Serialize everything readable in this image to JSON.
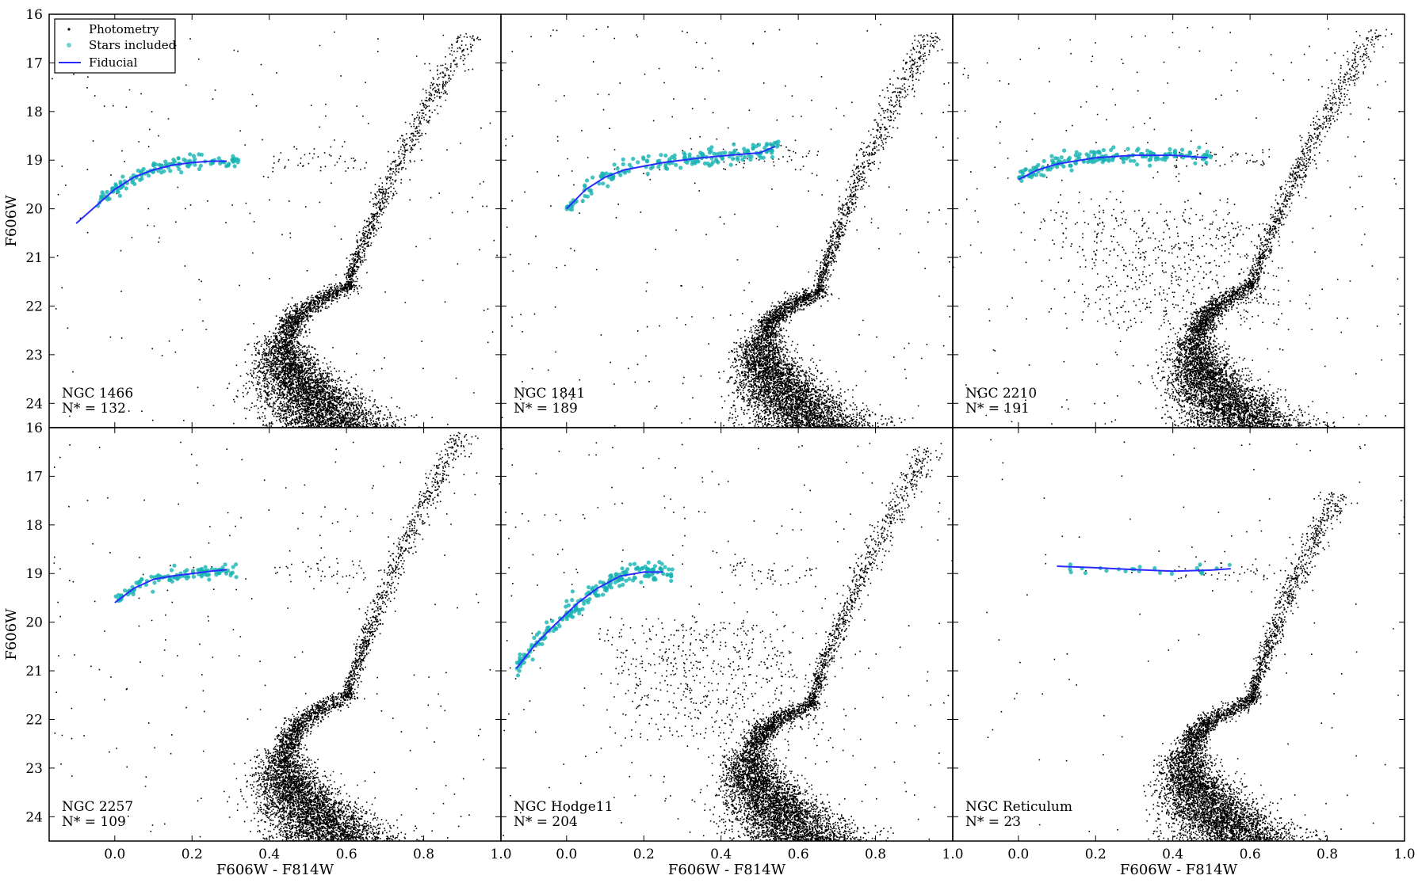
{
  "chart_data": {
    "type": "scatter",
    "layout_grid": "2x3",
    "xlim": [
      -0.17,
      1.0
    ],
    "ylim": [
      24.5,
      16.0
    ],
    "y_inverted": true,
    "xlabel": "F606W - F814W",
    "ylabel": "F606W",
    "x_ticks": [
      "0.0",
      "0.2",
      "0.4",
      "0.6",
      "0.8",
      "1.0"
    ],
    "y_ticks": [
      "16",
      "17",
      "18",
      "19",
      "20",
      "21",
      "22",
      "23",
      "24"
    ],
    "legend": {
      "placement": "top-left",
      "entries": [
        "Photometry",
        "Stars included",
        "Fiducial"
      ]
    },
    "colors": {
      "photometry": "#000000",
      "stars_included": "#17b3b3",
      "fiducial": "#2b2bff"
    },
    "panels": [
      {
        "name": "NGC 1466",
        "n_label": "N* = 132",
        "fiducial": [
          [
            -0.1,
            20.3
          ],
          [
            -0.05,
            19.95
          ],
          [
            0.0,
            19.6
          ],
          [
            0.05,
            19.35
          ],
          [
            0.1,
            19.2
          ],
          [
            0.15,
            19.1
          ],
          [
            0.2,
            19.05
          ],
          [
            0.25,
            19.02
          ],
          [
            0.29,
            19.02
          ]
        ],
        "hb_x": [
          -0.05,
          0.32
        ],
        "hb_y_spread": 0.15,
        "shape": {
          "ms_to_color": 0.43,
          "ms_to_mag": 22.6,
          "sgb_color": 0.6,
          "sgb_mag": 21.6,
          "rgb_tip_color": 0.92,
          "rgb_tip_mag": 16.4,
          "bss": false,
          "field_density": 1.0
        }
      },
      {
        "name": "NGC 1841",
        "n_label": "N* = 189",
        "fiducial": [
          [
            0.0,
            20.0
          ],
          [
            0.05,
            19.6
          ],
          [
            0.1,
            19.35
          ],
          [
            0.15,
            19.2
          ],
          [
            0.25,
            19.05
          ],
          [
            0.35,
            18.95
          ],
          [
            0.45,
            18.88
          ],
          [
            0.5,
            18.85
          ],
          [
            0.54,
            18.72
          ]
        ],
        "hb_x": [
          0.0,
          0.55
        ],
        "hb_y_spread": 0.2,
        "shape": {
          "ms_to_color": 0.5,
          "ms_to_mag": 22.6,
          "sgb_color": 0.65,
          "sgb_mag": 21.7,
          "rgb_tip_color": 0.94,
          "rgb_tip_mag": 16.4,
          "bss": false,
          "field_density": 1.2
        }
      },
      {
        "name": "NGC 2210",
        "n_label": "N* = 191",
        "fiducial": [
          [
            0.0,
            19.4
          ],
          [
            0.05,
            19.2
          ],
          [
            0.1,
            19.08
          ],
          [
            0.2,
            18.95
          ],
          [
            0.3,
            18.9
          ],
          [
            0.4,
            18.9
          ],
          [
            0.49,
            18.95
          ]
        ],
        "hb_x": [
          0.0,
          0.5
        ],
        "hb_y_spread": 0.15,
        "shape": {
          "ms_to_color": 0.45,
          "ms_to_mag": 22.6,
          "sgb_color": 0.6,
          "sgb_mag": 21.6,
          "rgb_tip_color": 0.93,
          "rgb_tip_mag": 16.3,
          "bss": true,
          "field_density": 1.3
        }
      },
      {
        "name": "NGC 2257",
        "n_label": "N* = 109",
        "fiducial": [
          [
            0.0,
            19.6
          ],
          [
            0.05,
            19.3
          ],
          [
            0.1,
            19.12
          ],
          [
            0.15,
            19.05
          ],
          [
            0.2,
            19.0
          ],
          [
            0.25,
            18.95
          ],
          [
            0.29,
            18.92
          ]
        ],
        "hb_x": [
          0.0,
          0.32
        ],
        "hb_y_spread": 0.15,
        "shape": {
          "ms_to_color": 0.43,
          "ms_to_mag": 22.6,
          "sgb_color": 0.6,
          "sgb_mag": 21.5,
          "rgb_tip_color": 0.9,
          "rgb_tip_mag": 16.1,
          "bss": false,
          "field_density": 1.0
        }
      },
      {
        "name": "NGC Hodge11",
        "n_label": "N* = 204",
        "fiducial": [
          [
            -0.13,
            20.95
          ],
          [
            -0.08,
            20.45
          ],
          [
            -0.03,
            20.05
          ],
          [
            0.03,
            19.6
          ],
          [
            0.08,
            19.3
          ],
          [
            0.14,
            19.05
          ],
          [
            0.2,
            18.97
          ],
          [
            0.25,
            18.97
          ]
        ],
        "hb_x": [
          -0.13,
          0.28
        ],
        "hb_y_spread": 0.2,
        "shape": {
          "ms_to_color": 0.47,
          "ms_to_mag": 22.6,
          "sgb_color": 0.63,
          "sgb_mag": 21.7,
          "rgb_tip_color": 0.94,
          "rgb_tip_mag": 16.4,
          "bss": true,
          "field_density": 1.3
        }
      },
      {
        "name": "NGC Reticulum",
        "n_label": "N* = 23",
        "fiducial": [
          [
            0.1,
            18.85
          ],
          [
            0.2,
            18.88
          ],
          [
            0.3,
            18.92
          ],
          [
            0.4,
            18.95
          ],
          [
            0.5,
            18.93
          ],
          [
            0.55,
            18.9
          ]
        ],
        "hb_x": [
          0.1,
          0.55
        ],
        "hb_y_spread": 0.1,
        "shape": {
          "ms_to_color": 0.43,
          "ms_to_mag": 22.6,
          "sgb_color": 0.6,
          "sgb_mag": 21.6,
          "rgb_tip_color": 0.83,
          "rgb_tip_mag": 17.3,
          "bss": false,
          "field_density": 0.5
        }
      }
    ]
  }
}
